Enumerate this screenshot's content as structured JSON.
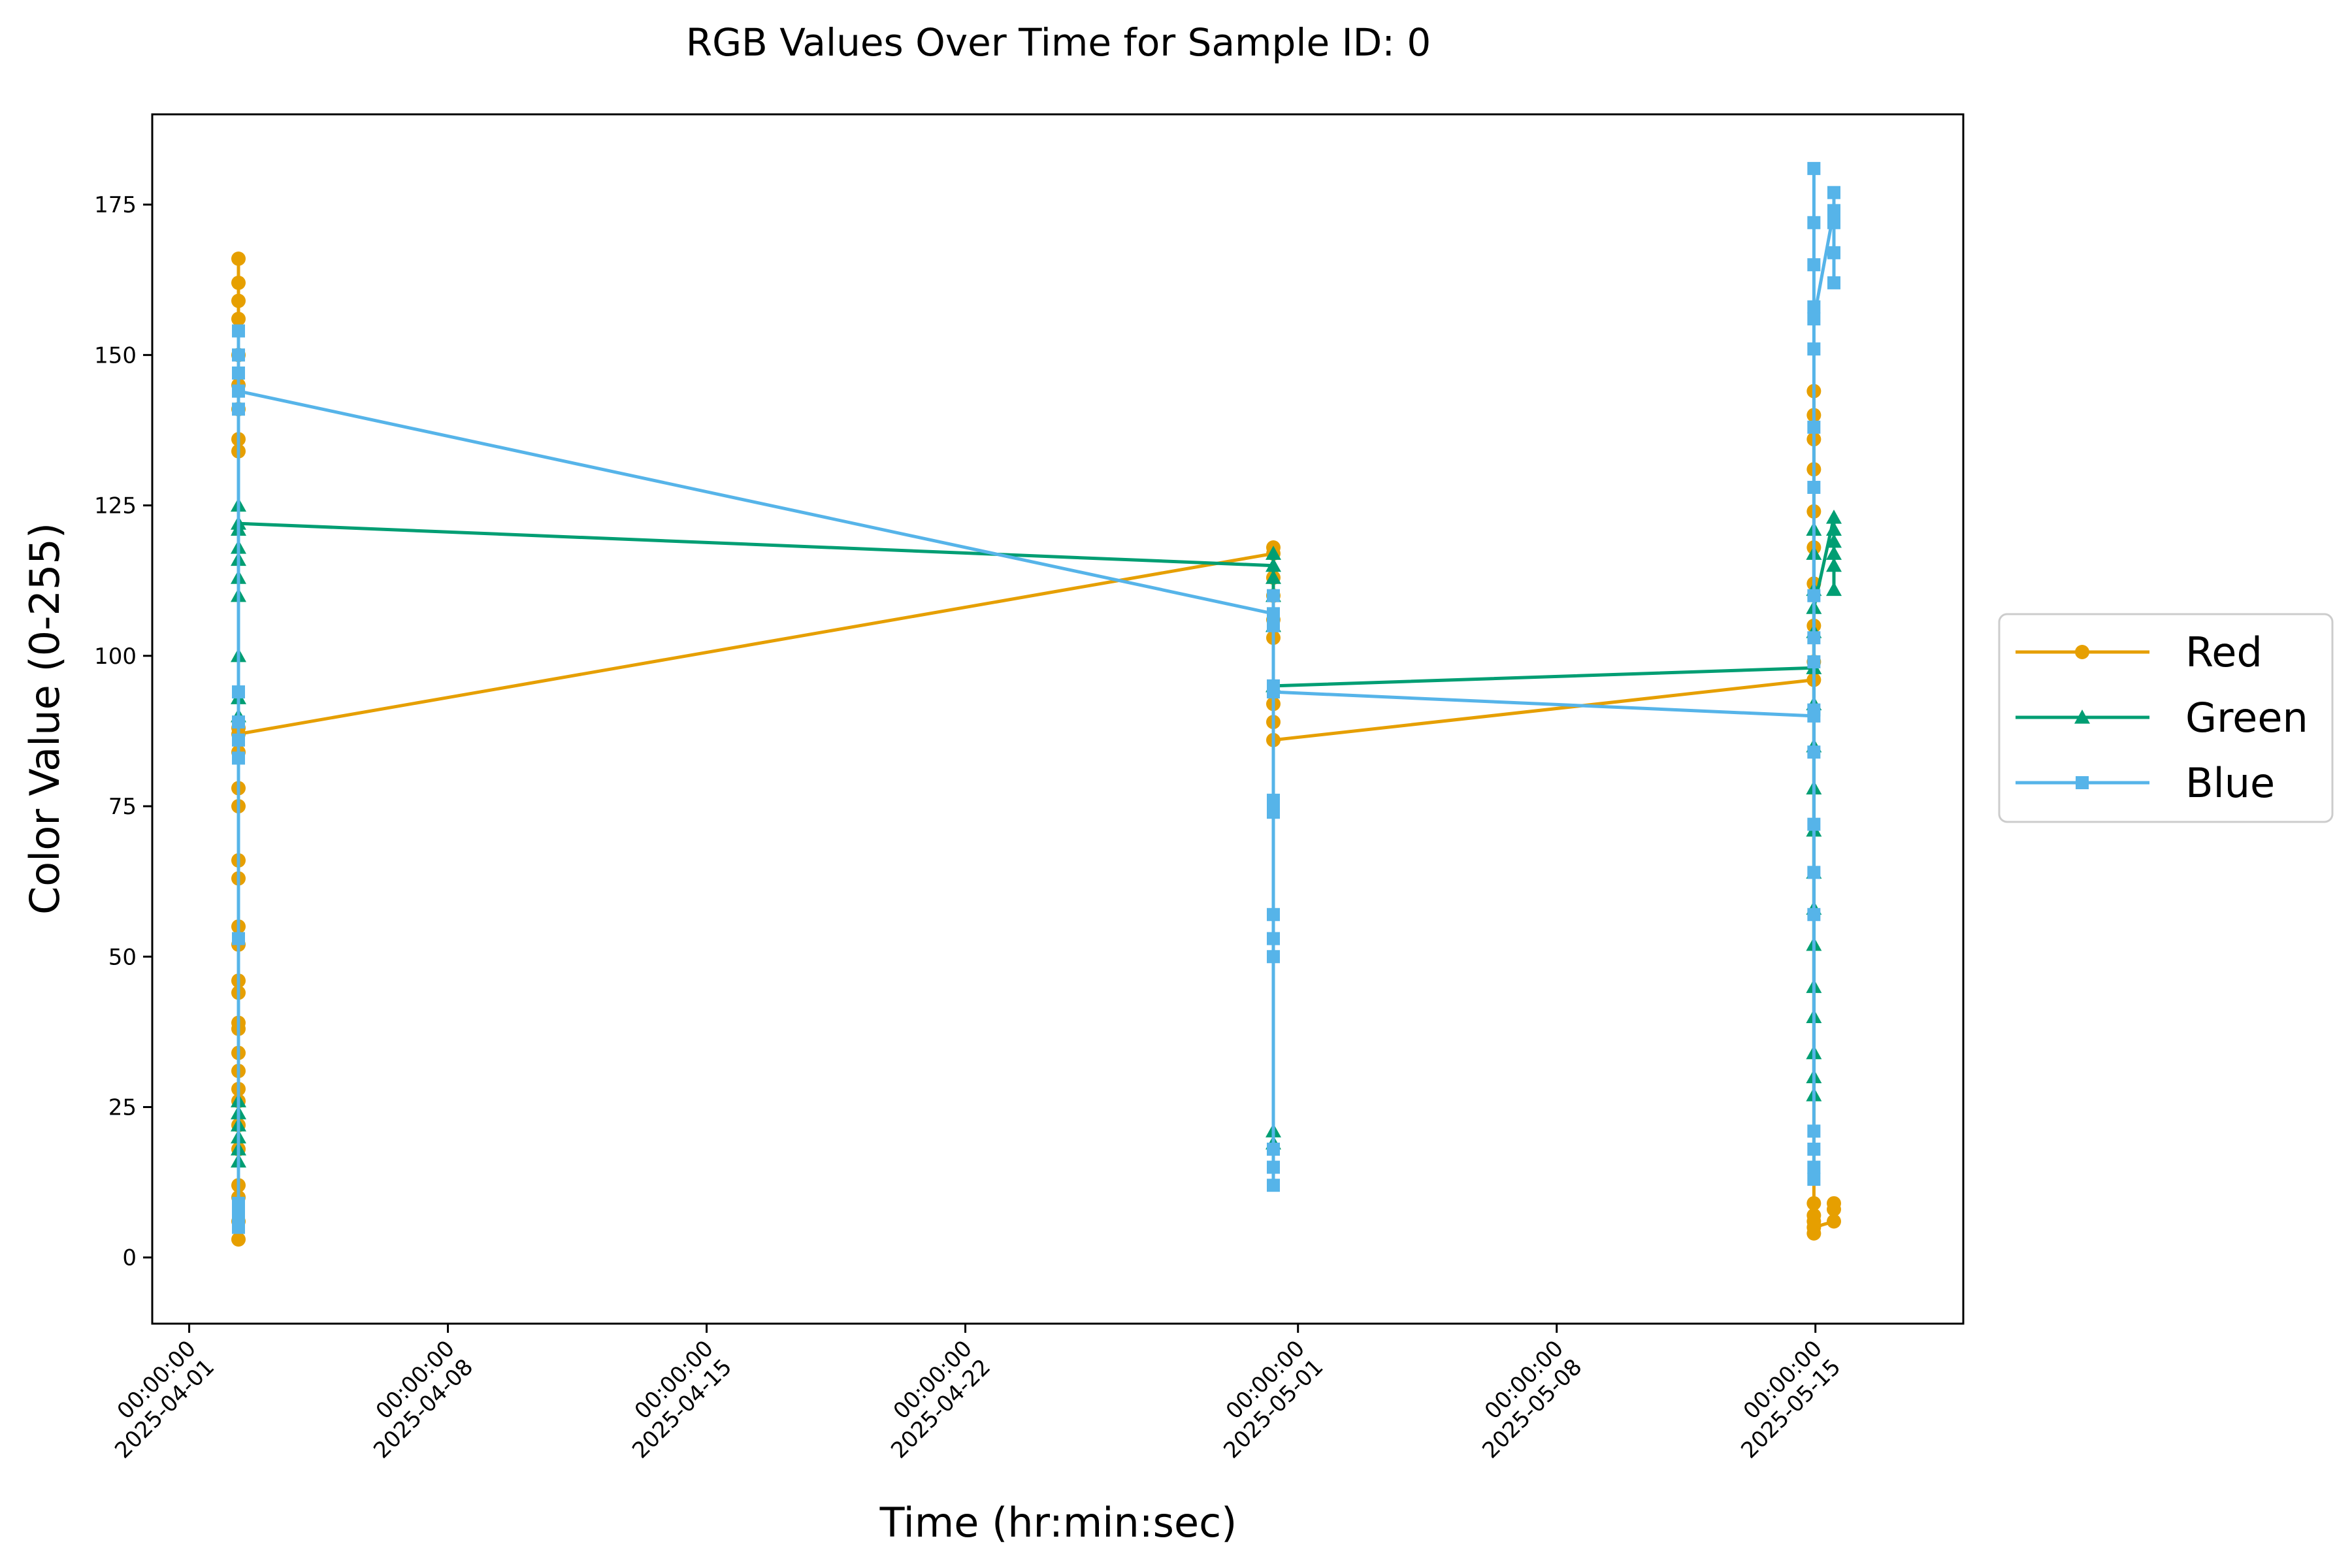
{
  "chart_data": {
    "type": "line",
    "title": "RGB Values Over Time for Sample ID: 0",
    "xlabel": "Time (hr:min:sec)",
    "ylabel": "Color Value (0-255)",
    "x_axis_type": "date",
    "xlim": [
      "2025-03-31T00:00:00",
      "2025-05-19T00:00:00"
    ],
    "ylim": [
      -11,
      190
    ],
    "x_ticks": [
      {
        "time": "00:00:00",
        "date": "2025-04-01"
      },
      {
        "time": "00:00:00",
        "date": "2025-04-08"
      },
      {
        "time": "00:00:00",
        "date": "2025-04-15"
      },
      {
        "time": "00:00:00",
        "date": "2025-04-22"
      },
      {
        "time": "00:00:00",
        "date": "2025-05-01"
      },
      {
        "time": "00:00:00",
        "date": "2025-05-08"
      },
      {
        "time": "00:00:00",
        "date": "2025-05-15"
      }
    ],
    "y_ticks": [
      "0",
      "25",
      "50",
      "75",
      "100",
      "125",
      "150",
      "175"
    ],
    "grid": false,
    "legend_position": "outside-right",
    "series": [
      {
        "name": "Red",
        "color": "#E69F00",
        "marker": "circle",
        "points": [
          [
            "2025-04-02T08:00",
            166
          ],
          [
            "2025-04-02T08:00",
            162
          ],
          [
            "2025-04-02T08:00",
            159
          ],
          [
            "2025-04-02T08:00",
            156
          ],
          [
            "2025-04-02T08:00",
            150
          ],
          [
            "2025-04-02T08:00",
            145
          ],
          [
            "2025-04-02T08:00",
            141
          ],
          [
            "2025-04-02T08:00",
            136
          ],
          [
            "2025-04-02T08:00",
            134
          ],
          [
            "2025-04-02T08:00",
            88
          ],
          [
            "2025-04-02T08:00",
            84
          ],
          [
            "2025-04-02T08:00",
            78
          ],
          [
            "2025-04-02T08:00",
            75
          ],
          [
            "2025-04-02T08:00",
            66
          ],
          [
            "2025-04-02T08:00",
            63
          ],
          [
            "2025-04-02T08:00",
            55
          ],
          [
            "2025-04-02T08:00",
            52
          ],
          [
            "2025-04-02T08:00",
            46
          ],
          [
            "2025-04-02T08:00",
            44
          ],
          [
            "2025-04-02T08:00",
            39
          ],
          [
            "2025-04-02T08:00",
            38
          ],
          [
            "2025-04-02T08:00",
            34
          ],
          [
            "2025-04-02T08:00",
            31
          ],
          [
            "2025-04-02T08:00",
            28
          ],
          [
            "2025-04-02T08:00",
            26
          ],
          [
            "2025-04-02T08:00",
            22
          ],
          [
            "2025-04-02T08:00",
            18
          ],
          [
            "2025-04-02T08:00",
            12
          ],
          [
            "2025-04-02T08:00",
            10
          ],
          [
            "2025-04-02T08:00",
            6
          ],
          [
            "2025-04-02T08:00",
            3
          ],
          [
            "2025-04-02T08:00",
            87
          ],
          [
            "2025-04-30T08:00",
            117
          ],
          [
            "2025-04-30T08:00",
            118
          ],
          [
            "2025-04-30T08:00",
            113
          ],
          [
            "2025-04-30T08:00",
            110
          ],
          [
            "2025-04-30T08:00",
            106
          ],
          [
            "2025-04-30T08:00",
            103
          ],
          [
            "2025-04-30T08:00",
            92
          ],
          [
            "2025-04-30T08:00",
            89
          ],
          [
            "2025-04-30T08:00",
            86
          ],
          [
            "2025-05-14T23:00",
            96
          ],
          [
            "2025-05-14T23:00",
            99
          ],
          [
            "2025-05-14T23:00",
            105
          ],
          [
            "2025-05-14T23:00",
            112
          ],
          [
            "2025-05-14T23:00",
            118
          ],
          [
            "2025-05-14T23:00",
            124
          ],
          [
            "2025-05-14T23:00",
            131
          ],
          [
            "2025-05-14T23:00",
            136
          ],
          [
            "2025-05-14T23:00",
            140
          ],
          [
            "2025-05-14T23:00",
            144
          ],
          [
            "2025-05-14T23:00",
            9
          ],
          [
            "2025-05-14T23:00",
            7
          ],
          [
            "2025-05-14T23:00",
            6
          ],
          [
            "2025-05-14T23:00",
            4
          ],
          [
            "2025-05-14T23:00",
            5
          ],
          [
            "2025-05-15T12:00",
            6
          ],
          [
            "2025-05-15T12:00",
            8
          ],
          [
            "2025-05-15T12:00",
            9
          ]
        ]
      },
      {
        "name": "Green",
        "color": "#009E73",
        "marker": "triangle",
        "points": [
          [
            "2025-04-02T08:00",
            125
          ],
          [
            "2025-04-02T08:00",
            121
          ],
          [
            "2025-04-02T08:00",
            118
          ],
          [
            "2025-04-02T08:00",
            116
          ],
          [
            "2025-04-02T08:00",
            113
          ],
          [
            "2025-04-02T08:00",
            110
          ],
          [
            "2025-04-02T08:00",
            100
          ],
          [
            "2025-04-02T08:00",
            93
          ],
          [
            "2025-04-02T08:00",
            90
          ],
          [
            "2025-04-02T08:00",
            26
          ],
          [
            "2025-04-02T08:00",
            24
          ],
          [
            "2025-04-02T08:00",
            22
          ],
          [
            "2025-04-02T08:00",
            20
          ],
          [
            "2025-04-02T08:00",
            18
          ],
          [
            "2025-04-02T08:00",
            16
          ],
          [
            "2025-04-02T08:00",
            122
          ],
          [
            "2025-04-30T08:00",
            115
          ],
          [
            "2025-04-30T08:00",
            117
          ],
          [
            "2025-04-30T08:00",
            113
          ],
          [
            "2025-04-30T08:00",
            110
          ],
          [
            "2025-04-30T08:00",
            105
          ],
          [
            "2025-04-30T08:00",
            21
          ],
          [
            "2025-04-30T08:00",
            19
          ],
          [
            "2025-04-30T08:00",
            95
          ],
          [
            "2025-05-14T23:00",
            98
          ],
          [
            "2025-05-14T23:00",
            121
          ],
          [
            "2025-05-14T23:00",
            117
          ],
          [
            "2025-05-14T23:00",
            111
          ],
          [
            "2025-05-14T23:00",
            104
          ],
          [
            "2025-05-14T23:00",
            92
          ],
          [
            "2025-05-14T23:00",
            85
          ],
          [
            "2025-05-14T23:00",
            78
          ],
          [
            "2025-05-14T23:00",
            71
          ],
          [
            "2025-05-14T23:00",
            64
          ],
          [
            "2025-05-14T23:00",
            58
          ],
          [
            "2025-05-14T23:00",
            52
          ],
          [
            "2025-05-14T23:00",
            45
          ],
          [
            "2025-05-14T23:00",
            40
          ],
          [
            "2025-05-14T23:00",
            34
          ],
          [
            "2025-05-14T23:00",
            30
          ],
          [
            "2025-05-14T23:00",
            27
          ],
          [
            "2025-05-14T23:00",
            108
          ],
          [
            "2025-05-15T12:00",
            123
          ],
          [
            "2025-05-15T12:00",
            121
          ],
          [
            "2025-05-15T12:00",
            119
          ],
          [
            "2025-05-15T12:00",
            117
          ],
          [
            "2025-05-15T12:00",
            115
          ],
          [
            "2025-05-15T12:00",
            111
          ]
        ]
      },
      {
        "name": "Blue",
        "color": "#56B4E9",
        "marker": "square",
        "points": [
          [
            "2025-04-02T08:00",
            154
          ],
          [
            "2025-04-02T08:00",
            150
          ],
          [
            "2025-04-02T08:00",
            147
          ],
          [
            "2025-04-02T08:00",
            144
          ],
          [
            "2025-04-02T08:00",
            141
          ],
          [
            "2025-04-02T08:00",
            94
          ],
          [
            "2025-04-02T08:00",
            89
          ],
          [
            "2025-04-02T08:00",
            86
          ],
          [
            "2025-04-02T08:00",
            83
          ],
          [
            "2025-04-02T08:00",
            53
          ],
          [
            "2025-04-02T08:00",
            9
          ],
          [
            "2025-04-02T08:00",
            7
          ],
          [
            "2025-04-02T08:00",
            5
          ],
          [
            "2025-04-02T08:00",
            144
          ],
          [
            "2025-04-30T08:00",
            107
          ],
          [
            "2025-04-30T08:00",
            110
          ],
          [
            "2025-04-30T08:00",
            105
          ],
          [
            "2025-04-30T08:00",
            95
          ],
          [
            "2025-04-30T08:00",
            76
          ],
          [
            "2025-04-30T08:00",
            74
          ],
          [
            "2025-04-30T08:00",
            57
          ],
          [
            "2025-04-30T08:00",
            53
          ],
          [
            "2025-04-30T08:00",
            50
          ],
          [
            "2025-04-30T08:00",
            18
          ],
          [
            "2025-04-30T08:00",
            15
          ],
          [
            "2025-04-30T08:00",
            12
          ],
          [
            "2025-04-30T08:00",
            94
          ],
          [
            "2025-05-14T23:00",
            90
          ],
          [
            "2025-05-14T23:00",
            181
          ],
          [
            "2025-05-14T23:00",
            172
          ],
          [
            "2025-05-14T23:00",
            165
          ],
          [
            "2025-05-14T23:00",
            158
          ],
          [
            "2025-05-14T23:00",
            151
          ],
          [
            "2025-05-14T23:00",
            138
          ],
          [
            "2025-05-14T23:00",
            128
          ],
          [
            "2025-05-14T23:00",
            110
          ],
          [
            "2025-05-14T23:00",
            103
          ],
          [
            "2025-05-14T23:00",
            99
          ],
          [
            "2025-05-14T23:00",
            91
          ],
          [
            "2025-05-14T23:00",
            84
          ],
          [
            "2025-05-14T23:00",
            72
          ],
          [
            "2025-05-14T23:00",
            64
          ],
          [
            "2025-05-14T23:00",
            57
          ],
          [
            "2025-05-14T23:00",
            21
          ],
          [
            "2025-05-14T23:00",
            18
          ],
          [
            "2025-05-14T23:00",
            15
          ],
          [
            "2025-05-14T23:00",
            13
          ],
          [
            "2025-05-14T23:00",
            156
          ],
          [
            "2025-05-15T12:00",
            174
          ],
          [
            "2025-05-15T12:00",
            177
          ],
          [
            "2025-05-15T12:00",
            172
          ],
          [
            "2025-05-15T12:00",
            167
          ],
          [
            "2025-05-15T12:00",
            162
          ]
        ]
      }
    ]
  }
}
